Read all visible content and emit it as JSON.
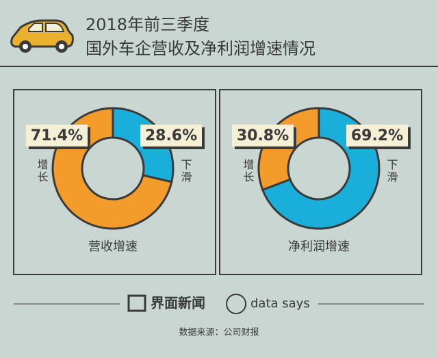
{
  "header": {
    "title_line1": "2018年前三季度",
    "title_line2": "国外车企营收及净利润增速情况"
  },
  "chart_data": [
    {
      "type": "pie",
      "title": "营收增速",
      "categories": [
        "下滑",
        "增长"
      ],
      "values": [
        28.6,
        71.4
      ],
      "value_labels": [
        "28.6%",
        "71.4%"
      ],
      "colors": [
        "#1aaedb",
        "#f39c2c"
      ]
    },
    {
      "type": "pie",
      "title": "净利润增速",
      "categories": [
        "下滑",
        "增长"
      ],
      "values": [
        69.2,
        30.8
      ],
      "value_labels": [
        "69.2%",
        "30.8%"
      ],
      "colors": [
        "#1aaedb",
        "#f39c2c"
      ]
    }
  ],
  "footer": {
    "brand": "界面新闻",
    "brand2": "data says",
    "source": "数据来源：公司财报"
  }
}
